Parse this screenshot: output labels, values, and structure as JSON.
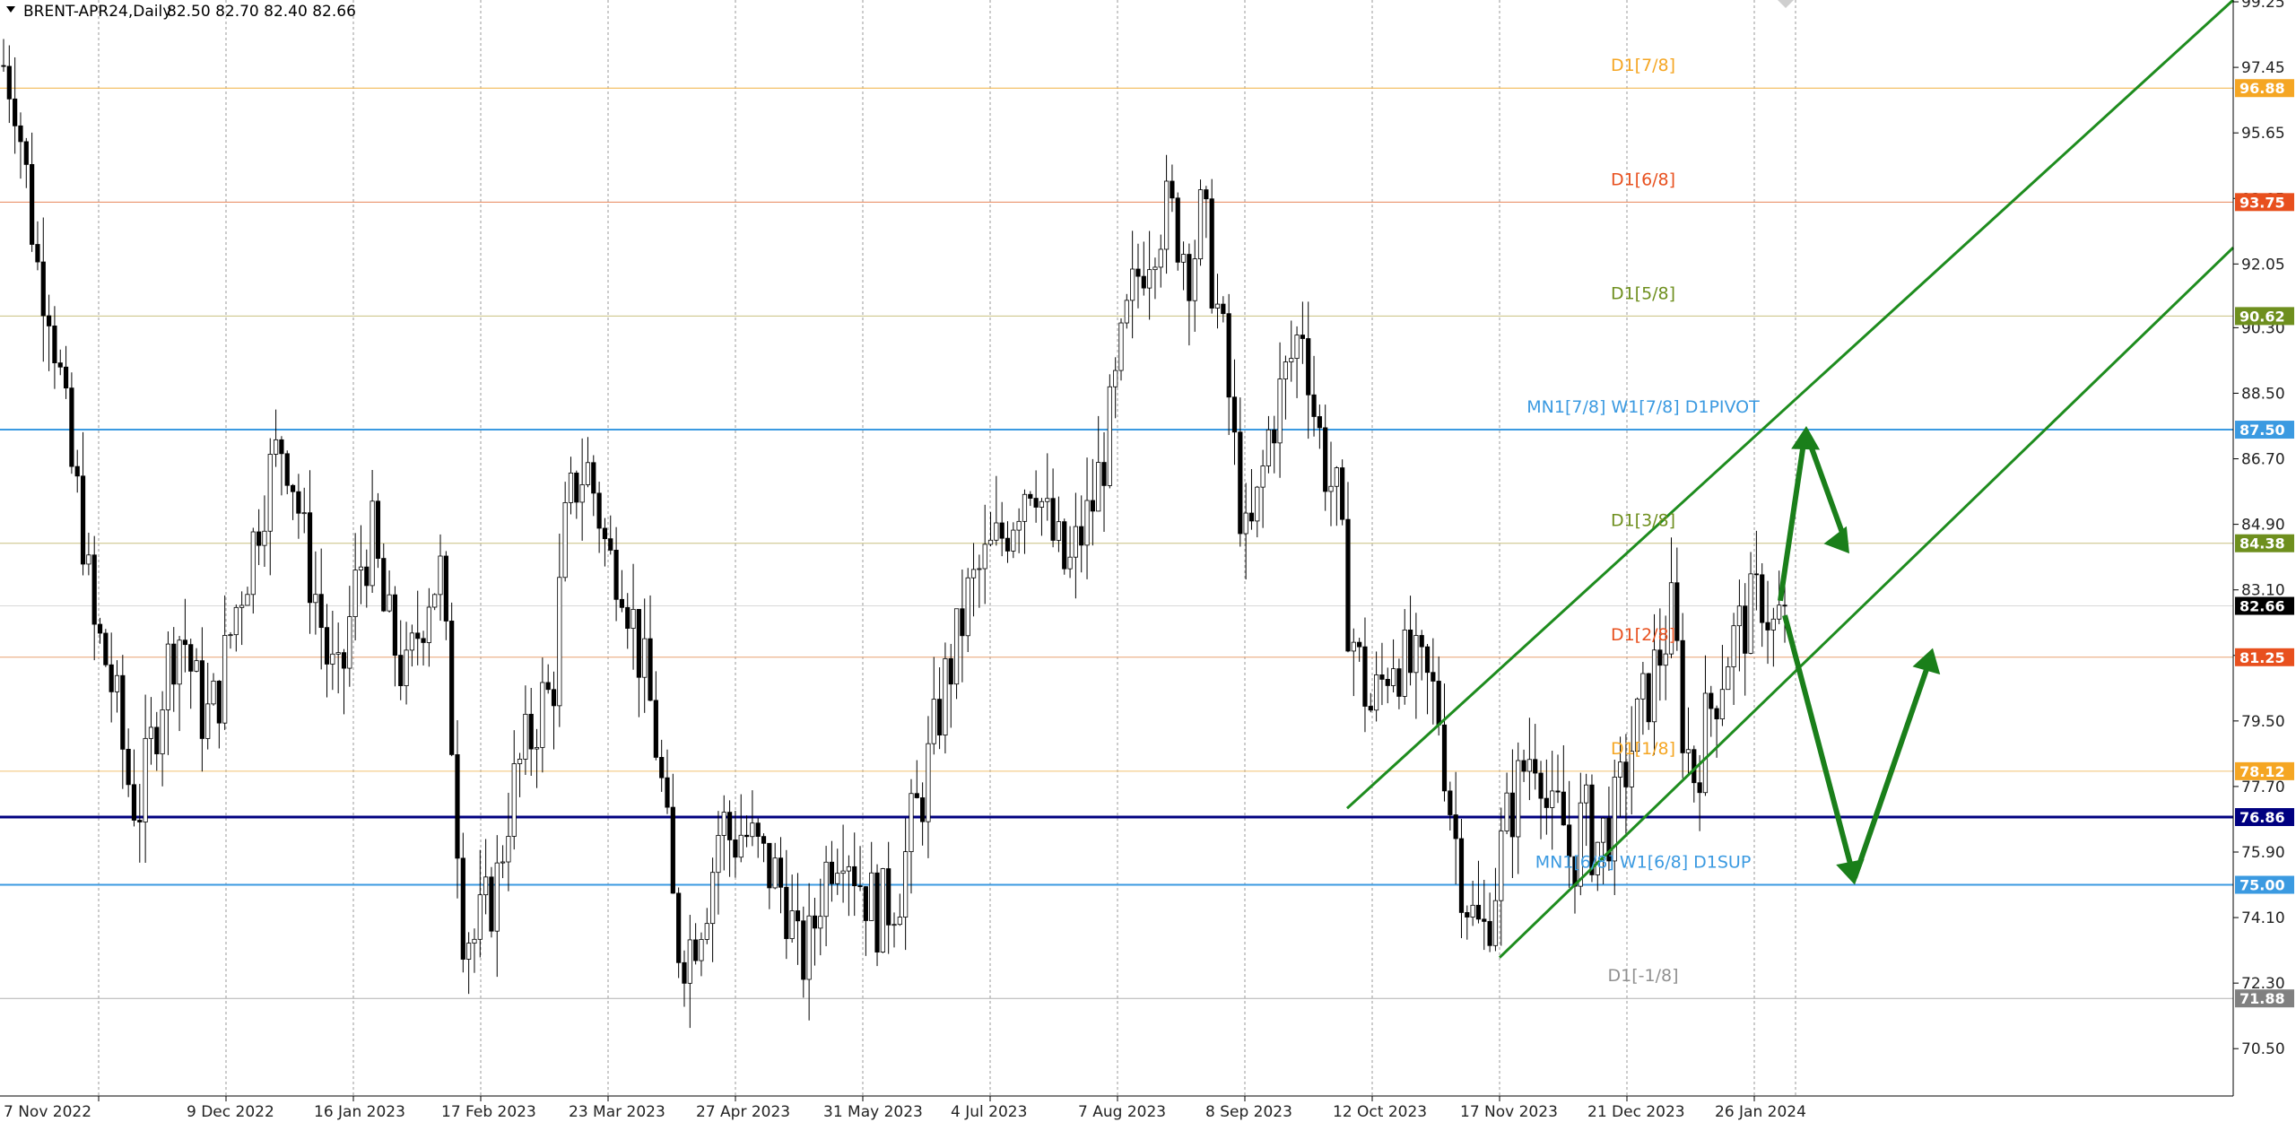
{
  "header": {
    "symbol": "BRENT-APR24,Daily",
    "ohlc": "82.50 82.70 82.40 82.66"
  },
  "chart_data": {
    "type": "candlestick",
    "symbol": "BRENT-APR24",
    "timeframe": "Daily",
    "last_price": 82.66,
    "ylim": [
      69.2,
      99.3
    ],
    "y_ticks": [
      {
        "v": 99.25,
        "label": "99.25"
      },
      {
        "v": 97.45,
        "label": "97.45"
      },
      {
        "v": 95.65,
        "label": "95.65"
      },
      {
        "v": 93.85,
        "label": "93.85"
      },
      {
        "v": 92.05,
        "label": "92.05"
      },
      {
        "v": 90.3,
        "label": "90.30"
      },
      {
        "v": 88.5,
        "label": "88.50"
      },
      {
        "v": 86.7,
        "label": "86.70"
      },
      {
        "v": 84.9,
        "label": "84.90"
      },
      {
        "v": 83.1,
        "label": "83.10"
      },
      {
        "v": 81.3,
        "label": "81.30"
      },
      {
        "v": 79.5,
        "label": "79.50"
      },
      {
        "v": 77.7,
        "label": "77.70"
      },
      {
        "v": 75.9,
        "label": "75.90"
      },
      {
        "v": 74.1,
        "label": "74.10"
      },
      {
        "v": 72.3,
        "label": "72.30"
      },
      {
        "v": 70.5,
        "label": "70.50"
      }
    ],
    "x_ticks": [
      "7 Nov 2022",
      "9 Dec 2022",
      "16 Jan 2023",
      "17 Feb 2023",
      "23 Mar 2023",
      "27 Apr 2023",
      "31 May 2023",
      "4 Jul 2023",
      "7 Aug 2023",
      "8 Sep 2023",
      "12 Oct 2023",
      "17 Nov 2023",
      "21 Dec 2023",
      "26 Jan 2024"
    ],
    "levels": [
      {
        "name": "D1[7/8]",
        "value": 96.88,
        "tag": "96.88",
        "line": "#f0b040",
        "tagbg": "#f5a623",
        "labelcolor": "#f5a623",
        "width": 1
      },
      {
        "name": "D1[6/8]",
        "value": 93.75,
        "tag": "93.75",
        "line": "#e8845a",
        "tagbg": "#e8501e",
        "labelcolor": "#e8501e",
        "width": 1
      },
      {
        "name": "D1[5/8]",
        "value": 90.62,
        "tag": "90.62",
        "line": "#c8c080",
        "tagbg": "#6e8f1e",
        "labelcolor": "#6e8f1e",
        "width": 1
      },
      {
        "name": "MN1[7/8] W1[7/8] D1PIVOT",
        "value": 87.5,
        "tag": "87.50",
        "line": "#3b9ae1",
        "tagbg": "#3b9ae1",
        "labelcolor": "#3b9ae1",
        "width": 2
      },
      {
        "name": "D1[3/8]",
        "value": 84.38,
        "tag": "84.38",
        "line": "#c8c080",
        "tagbg": "#6e8f1e",
        "labelcolor": "#6e8f1e",
        "width": 1
      },
      {
        "name": "D1[2/8]",
        "value": 81.25,
        "tag": "81.25",
        "line": "#e8a070",
        "tagbg": "#e8501e",
        "labelcolor": "#e8501e",
        "width": 1
      },
      {
        "name": "D1[1/8]",
        "value": 78.12,
        "tag": "78.12",
        "line": "#f0c070",
        "tagbg": "#f5a623",
        "labelcolor": "#f5a623",
        "width": 1
      },
      {
        "name": "",
        "value": 76.86,
        "tag": "76.86",
        "line": "#000080",
        "tagbg": "#000080",
        "labelcolor": "#000080",
        "width": 3
      },
      {
        "name": "MN1[6/8] W1[6/8] D1SUP",
        "value": 75.0,
        "tag": "75.00",
        "line": "#3b9ae1",
        "tagbg": "#3b9ae1",
        "labelcolor": "#3b9ae1",
        "width": 2
      },
      {
        "name": "D1[-1/8]",
        "value": 71.88,
        "tag": "71.88",
        "line": "#b0b0b0",
        "tagbg": "#808080",
        "labelcolor": "#909090",
        "width": 1
      }
    ],
    "channel_color": "#1e8c1e",
    "arrow_color": "#1a7f1a",
    "price_series": [
      97.5,
      96.8,
      94.5,
      92.0,
      91.3,
      89.0,
      86.5,
      85.0,
      82.0,
      81.3,
      80.0,
      78.0,
      77.0,
      78.5,
      80.2,
      81.5,
      82.0,
      80.5,
      79.5,
      80.0,
      81.5,
      83.0,
      84.0,
      85.5,
      86.5,
      87.3,
      86.0,
      84.0,
      82.8,
      81.0,
      80.2,
      82.5,
      84.0,
      84.5,
      82.3,
      81.5,
      80.5,
      82.0,
      83.2,
      83.5,
      79.2,
      74.0,
      73.5,
      74.2,
      75.0,
      77.0,
      78.2,
      79.0,
      80.0,
      80.2,
      84.5,
      86.0,
      86.5,
      85.5,
      83.8,
      84.0,
      82.5,
      81.0,
      79.5,
      77.0,
      73.5,
      73.2,
      74.0,
      75.0,
      76.8,
      76.2,
      76.5,
      76.0,
      75.5,
      75.2,
      74.5,
      72.8,
      73.3,
      75.0,
      76.0,
      76.5,
      75.5,
      74.8,
      74.2,
      74.5,
      75.0,
      76.5,
      77.5,
      79.0,
      80.5,
      81.5,
      82.8,
      83.5,
      84.0,
      84.5,
      85.2,
      86.0,
      86.5,
      85.0,
      84.2,
      83.5,
      84.5,
      85.2,
      86.5,
      88.0,
      90.0,
      91.5,
      92.5,
      93.2,
      93.5,
      92.8,
      92.0,
      93.5,
      91.5,
      89.5,
      86.5,
      84.0,
      85.5,
      87.5,
      88.5,
      89.5,
      90.5,
      88.0,
      86.5,
      85.5,
      82.5,
      81.0,
      79.8,
      80.5,
      81.5,
      81.0,
      80.8,
      80.5,
      80.0,
      77.5,
      75.5,
      74.2,
      73.5,
      74.8,
      76.5,
      77.5,
      78.5,
      79.0,
      76.5,
      77.0,
      75.5,
      77.0,
      76.0,
      76.5,
      77.0,
      78.5,
      79.5,
      80.5,
      81.5,
      82.5,
      79.0,
      78.0,
      79.5,
      80.5,
      81.5,
      82.0,
      82.5,
      83.0,
      82.0,
      82.66
    ],
    "annotations": [
      "rising channel",
      "projected path up to 87.50 then down",
      "projected path down to 75.00 then up"
    ]
  }
}
